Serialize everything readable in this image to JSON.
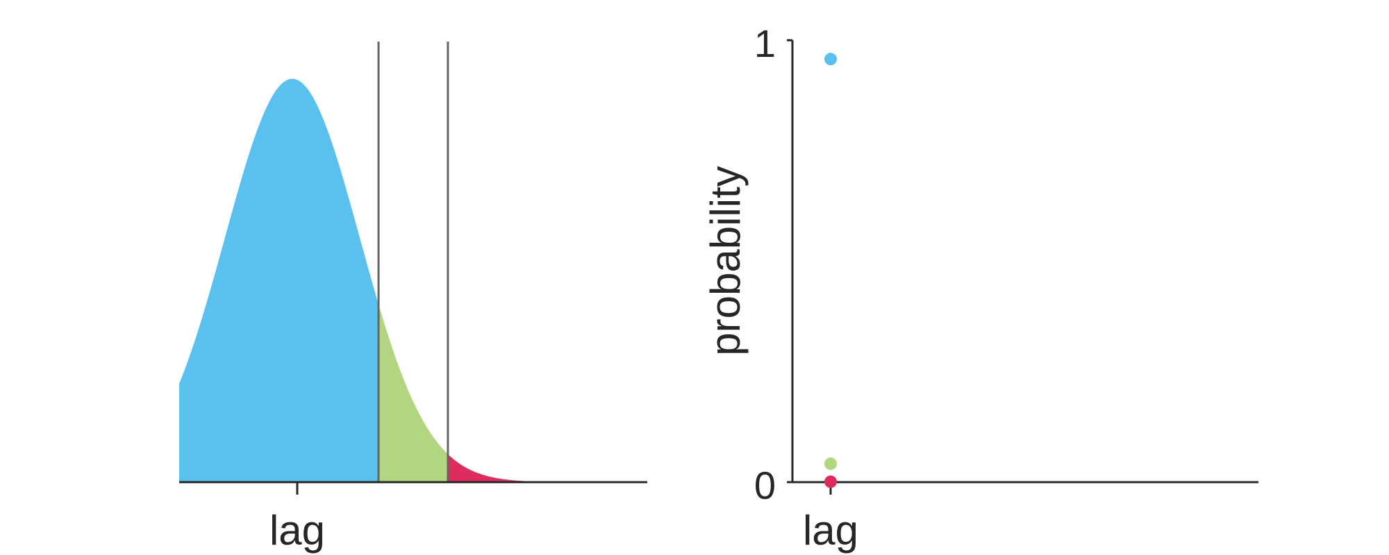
{
  "chart_data": [
    {
      "type": "area",
      "xlabel": "lag",
      "ylabel": "",
      "x_ticks": [
        ""
      ],
      "distribution": {
        "mean": 0,
        "sd": 1
      },
      "xlim": [
        -1.68,
        5.27
      ],
      "ylim": [
        0,
        0.4
      ],
      "thresholds": [
        1.28,
        2.31
      ],
      "regions": [
        {
          "from": -1.68,
          "to": 1.28,
          "color": "#5ac1ef"
        },
        {
          "from": 1.28,
          "to": 2.31,
          "color": "#b1d67f"
        },
        {
          "from": 2.31,
          "to": 5.27,
          "color": "#dc2d5e"
        }
      ],
      "grid": false
    },
    {
      "type": "scatter",
      "xlabel": "lag",
      "ylabel": "probability",
      "yticks": [
        "0",
        "1"
      ],
      "ylim": [
        0,
        1
      ],
      "points": [
        {
          "x": 0,
          "y": 0.9574,
          "color": "#5ac1ef"
        },
        {
          "x": 0,
          "y": 0.0417,
          "color": "#b1d67f"
        },
        {
          "x": 0,
          "y": 0.001,
          "color": "#dc2d5e"
        }
      ],
      "grid": false
    }
  ]
}
